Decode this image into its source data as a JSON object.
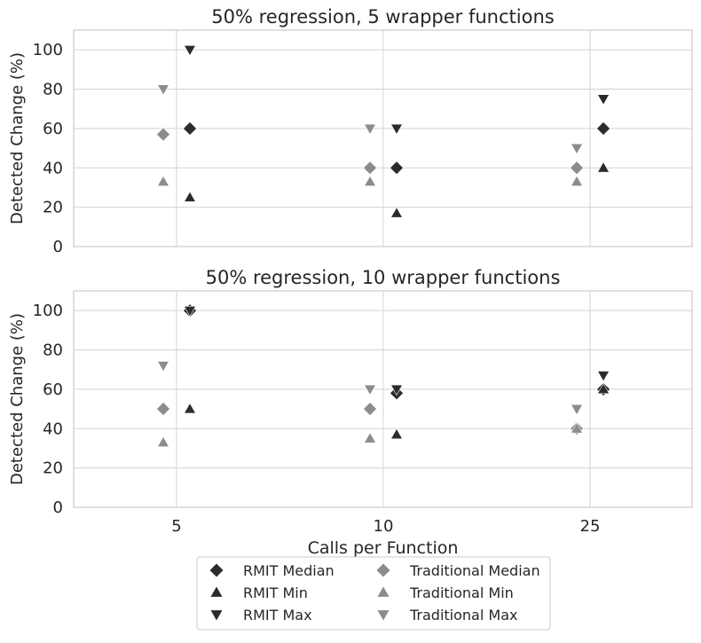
{
  "chart_data": [
    {
      "type": "scatter",
      "title": "50% regression, 5 wrapper functions",
      "xlabel": "",
      "ylabel": "Detected Change (%)",
      "categories": [
        "5",
        "10",
        "25"
      ],
      "ylim": [
        0,
        110
      ],
      "yticks": [
        0,
        20,
        40,
        60,
        80,
        100
      ],
      "grid": true,
      "series": [
        {
          "name": "RMIT Median",
          "group": "rmit",
          "marker": "diamond",
          "values": [
            60,
            40,
            60
          ]
        },
        {
          "name": "RMIT Min",
          "group": "rmit",
          "marker": "triangle-up",
          "values": [
            25,
            17,
            40
          ]
        },
        {
          "name": "RMIT Max",
          "group": "rmit",
          "marker": "triangle-down",
          "values": [
            100,
            60,
            75
          ]
        },
        {
          "name": "Traditional Median",
          "group": "traditional",
          "marker": "diamond",
          "values": [
            57,
            40,
            40
          ]
        },
        {
          "name": "Traditional Min",
          "group": "traditional",
          "marker": "triangle-up",
          "values": [
            33,
            33,
            33
          ]
        },
        {
          "name": "Traditional Max",
          "group": "traditional",
          "marker": "triangle-down",
          "values": [
            80,
            60,
            50
          ]
        }
      ]
    },
    {
      "type": "scatter",
      "title": "50% regression, 10 wrapper functions",
      "xlabel": "Calls per Function",
      "ylabel": "Detected Change (%)",
      "categories": [
        "5",
        "10",
        "25"
      ],
      "ylim": [
        0,
        110
      ],
      "yticks": [
        0,
        20,
        40,
        60,
        80,
        100
      ],
      "grid": true,
      "series": [
        {
          "name": "RMIT Median",
          "group": "rmit",
          "marker": "diamond",
          "values": [
            100,
            58,
            60
          ]
        },
        {
          "name": "RMIT Min",
          "group": "rmit",
          "marker": "triangle-up",
          "values": [
            50,
            37,
            60
          ]
        },
        {
          "name": "RMIT Max",
          "group": "rmit",
          "marker": "triangle-down",
          "values": [
            100,
            60,
            67
          ]
        },
        {
          "name": "Traditional Median",
          "group": "traditional",
          "marker": "diamond",
          "values": [
            50,
            50,
            40
          ]
        },
        {
          "name": "Traditional Min",
          "group": "traditional",
          "marker": "triangle-up",
          "values": [
            33,
            35,
            40
          ]
        },
        {
          "name": "Traditional Max",
          "group": "traditional",
          "marker": "triangle-down",
          "values": [
            72,
            60,
            50
          ]
        }
      ]
    }
  ],
  "legend": {
    "placement": "bottom-center",
    "entries": [
      {
        "label": "RMIT Median",
        "marker": "diamond",
        "color": "#2b2b2b"
      },
      {
        "label": "RMIT Min",
        "marker": "triangle-up",
        "color": "#2b2b2b"
      },
      {
        "label": "RMIT Max",
        "marker": "triangle-down",
        "color": "#2b2b2b"
      },
      {
        "label": "Traditional Median",
        "marker": "diamond",
        "color": "#8c8c8c"
      },
      {
        "label": "Traditional Min",
        "marker": "triangle-up",
        "color": "#8c8c8c"
      },
      {
        "label": "Traditional Max",
        "marker": "triangle-down",
        "color": "#8c8c8c"
      }
    ]
  },
  "colors": {
    "rmit": "#2b2b2b",
    "traditional": "#8c8c8c",
    "grid": "#d3d3d3",
    "text": "#262626"
  }
}
